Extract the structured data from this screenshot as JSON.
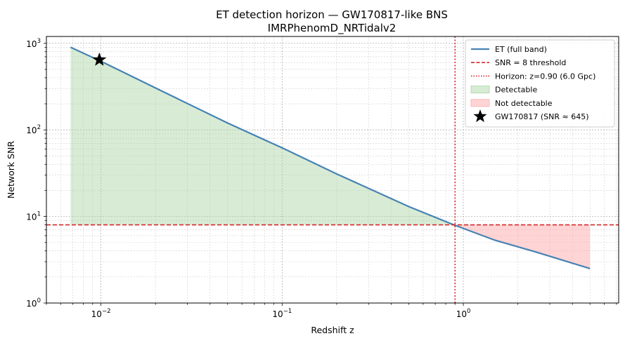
{
  "chart_data": {
    "type": "line",
    "title": "ET detection horizon — GW170817-like BNS",
    "subtitle": "IMRPhenomD_NRTidalv2",
    "xlabel": "Redshift  z",
    "ylabel": "Network SNR",
    "xscale": "log",
    "yscale": "log",
    "xlim": [
      0.005,
      7.2
    ],
    "ylim": [
      1,
      1200
    ],
    "grid": true,
    "legend_position": "top-right",
    "x_ticks": [
      {
        "value": 0.01,
        "base": "10",
        "exp": "−2"
      },
      {
        "value": 0.1,
        "base": "10",
        "exp": "−1"
      },
      {
        "value": 1,
        "base": "10",
        "exp": "0"
      }
    ],
    "y_ticks": [
      {
        "value": 1,
        "base": "10",
        "exp": "0"
      },
      {
        "value": 10,
        "base": "10",
        "exp": "1"
      },
      {
        "value": 100,
        "base": "10",
        "exp": "2"
      },
      {
        "value": 1000,
        "base": "10",
        "exp": "3"
      }
    ],
    "series": [
      {
        "name": "ET (full band)",
        "color": "#4682b4",
        "x": [
          0.0068,
          0.01,
          0.02,
          0.05,
          0.1,
          0.2,
          0.5,
          0.9,
          1.5,
          2.5,
          5.0
        ],
        "y": [
          900,
          620,
          305,
          120,
          62,
          31,
          13,
          7.9,
          5.3,
          3.9,
          2.5
        ]
      }
    ],
    "threshold": {
      "name": "SNR = 8 threshold",
      "value": 8,
      "color": "#d62728"
    },
    "horizon": {
      "name": "Horizon: z=0.90  (6.0 Gpc)",
      "value": 0.9,
      "color": "#d62728"
    },
    "regions": [
      {
        "name": "Detectable",
        "color": "#a8d5a2"
      },
      {
        "name": "Not detectable",
        "color": "#ffaaaa"
      }
    ],
    "marker": {
      "name": "GW170817  (SNR ≈ 645)",
      "x": 0.0098,
      "y": 645,
      "color": "#000000"
    }
  }
}
